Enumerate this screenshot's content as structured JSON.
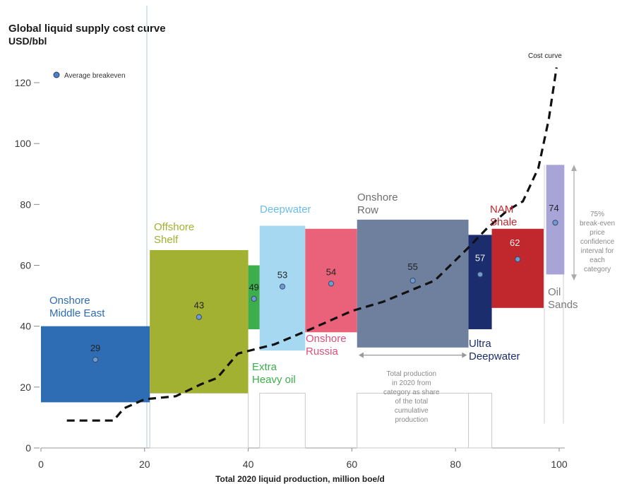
{
  "chart_data": {
    "type": "bar",
    "title": "Global liquid supply cost curve",
    "subtitle": "USD/bbl",
    "xlabel": "Total 2020 liquid production, million boe/d",
    "ylabel": "",
    "xlim": [
      0,
      100
    ],
    "ylim": [
      0,
      125
    ],
    "x_ticks": [
      0,
      20,
      40,
      60,
      80,
      100
    ],
    "y_ticks": [
      0,
      20,
      40,
      60,
      80,
      100,
      120
    ],
    "legend": {
      "marker_label": "Average breakeven",
      "placement": "top-left"
    },
    "categories": [
      {
        "label_lines": [
          "Onshore",
          "Middle East"
        ],
        "x_start": 0,
        "x_end": 21,
        "low": 15,
        "high": 40,
        "breakeven": 29,
        "color": "#2e6db4",
        "label_color": "#2e6db4"
      },
      {
        "label_lines": [
          "Offshore",
          "Shelf"
        ],
        "x_start": 21,
        "x_end": 40,
        "low": 18,
        "high": 65,
        "breakeven": 43,
        "color": "#a2b131",
        "label_color": "#a2b131"
      },
      {
        "label_lines": [
          "Extra",
          "Heavy oil"
        ],
        "x_start": 40,
        "x_end": 42.2,
        "low": 39,
        "high": 60,
        "breakeven": 49,
        "color": "#3dae4c",
        "label_color": "#3dae4c"
      },
      {
        "label_lines": [
          "Deepwater"
        ],
        "x_start": 42.2,
        "x_end": 51,
        "low": 32,
        "high": 73,
        "breakeven": 53,
        "color": "#a6d8f2",
        "label_color": "#6cbde8"
      },
      {
        "label_lines": [
          "Onshore",
          "Russia"
        ],
        "x_start": 51,
        "x_end": 61,
        "low": 38,
        "high": 72,
        "breakeven": 54,
        "color": "#e9627a",
        "label_color": "#d9527a"
      },
      {
        "label_lines": [
          "Onshore",
          "Row"
        ],
        "x_start": 61,
        "x_end": 82.5,
        "low": 33,
        "high": 75,
        "breakeven": 55,
        "color": "#6f809e",
        "label_color": "#6f6f6f"
      },
      {
        "label_lines": [
          "Ultra",
          "Deepwater"
        ],
        "x_start": 82.5,
        "x_end": 87,
        "low": 39,
        "high": 70,
        "breakeven": 57,
        "color": "#1c2d6e",
        "label_color": "#1c2d6e"
      },
      {
        "label_lines": [
          "NAM",
          "Shale"
        ],
        "x_start": 87,
        "x_end": 97,
        "low": 46,
        "high": 72,
        "breakeven": 62,
        "color": "#c0282e",
        "label_color": "#c0282e"
      },
      {
        "label_lines": [
          "Oil",
          "Sands"
        ],
        "x_start": 97.5,
        "x_end": 101,
        "low": 57,
        "high": 93,
        "breakeven": 74,
        "color": "#a9a4d8",
        "label_color": "#7a7a7a"
      }
    ],
    "cost_curve": {
      "name": "Cost curve",
      "points": [
        [
          5,
          9
        ],
        [
          14,
          9
        ],
        [
          16,
          13
        ],
        [
          20,
          16
        ],
        [
          26,
          17
        ],
        [
          31,
          21
        ],
        [
          34,
          23
        ],
        [
          38,
          31
        ],
        [
          45,
          34
        ],
        [
          52,
          39
        ],
        [
          60,
          45
        ],
        [
          66,
          48
        ],
        [
          76,
          55
        ],
        [
          82,
          65
        ],
        [
          86,
          72
        ],
        [
          90,
          78
        ],
        [
          93,
          81
        ],
        [
          96,
          92
        ],
        [
          98,
          108
        ],
        [
          99.5,
          125
        ]
      ]
    },
    "annotations": {
      "bracket_text": [
        "Total production",
        "in 2020 from",
        "category as share",
        "of the total",
        "cumulative",
        "production"
      ],
      "interval_text": [
        "75%",
        "break-even",
        "price",
        "confidence",
        "interval for",
        "each",
        "category"
      ]
    }
  }
}
